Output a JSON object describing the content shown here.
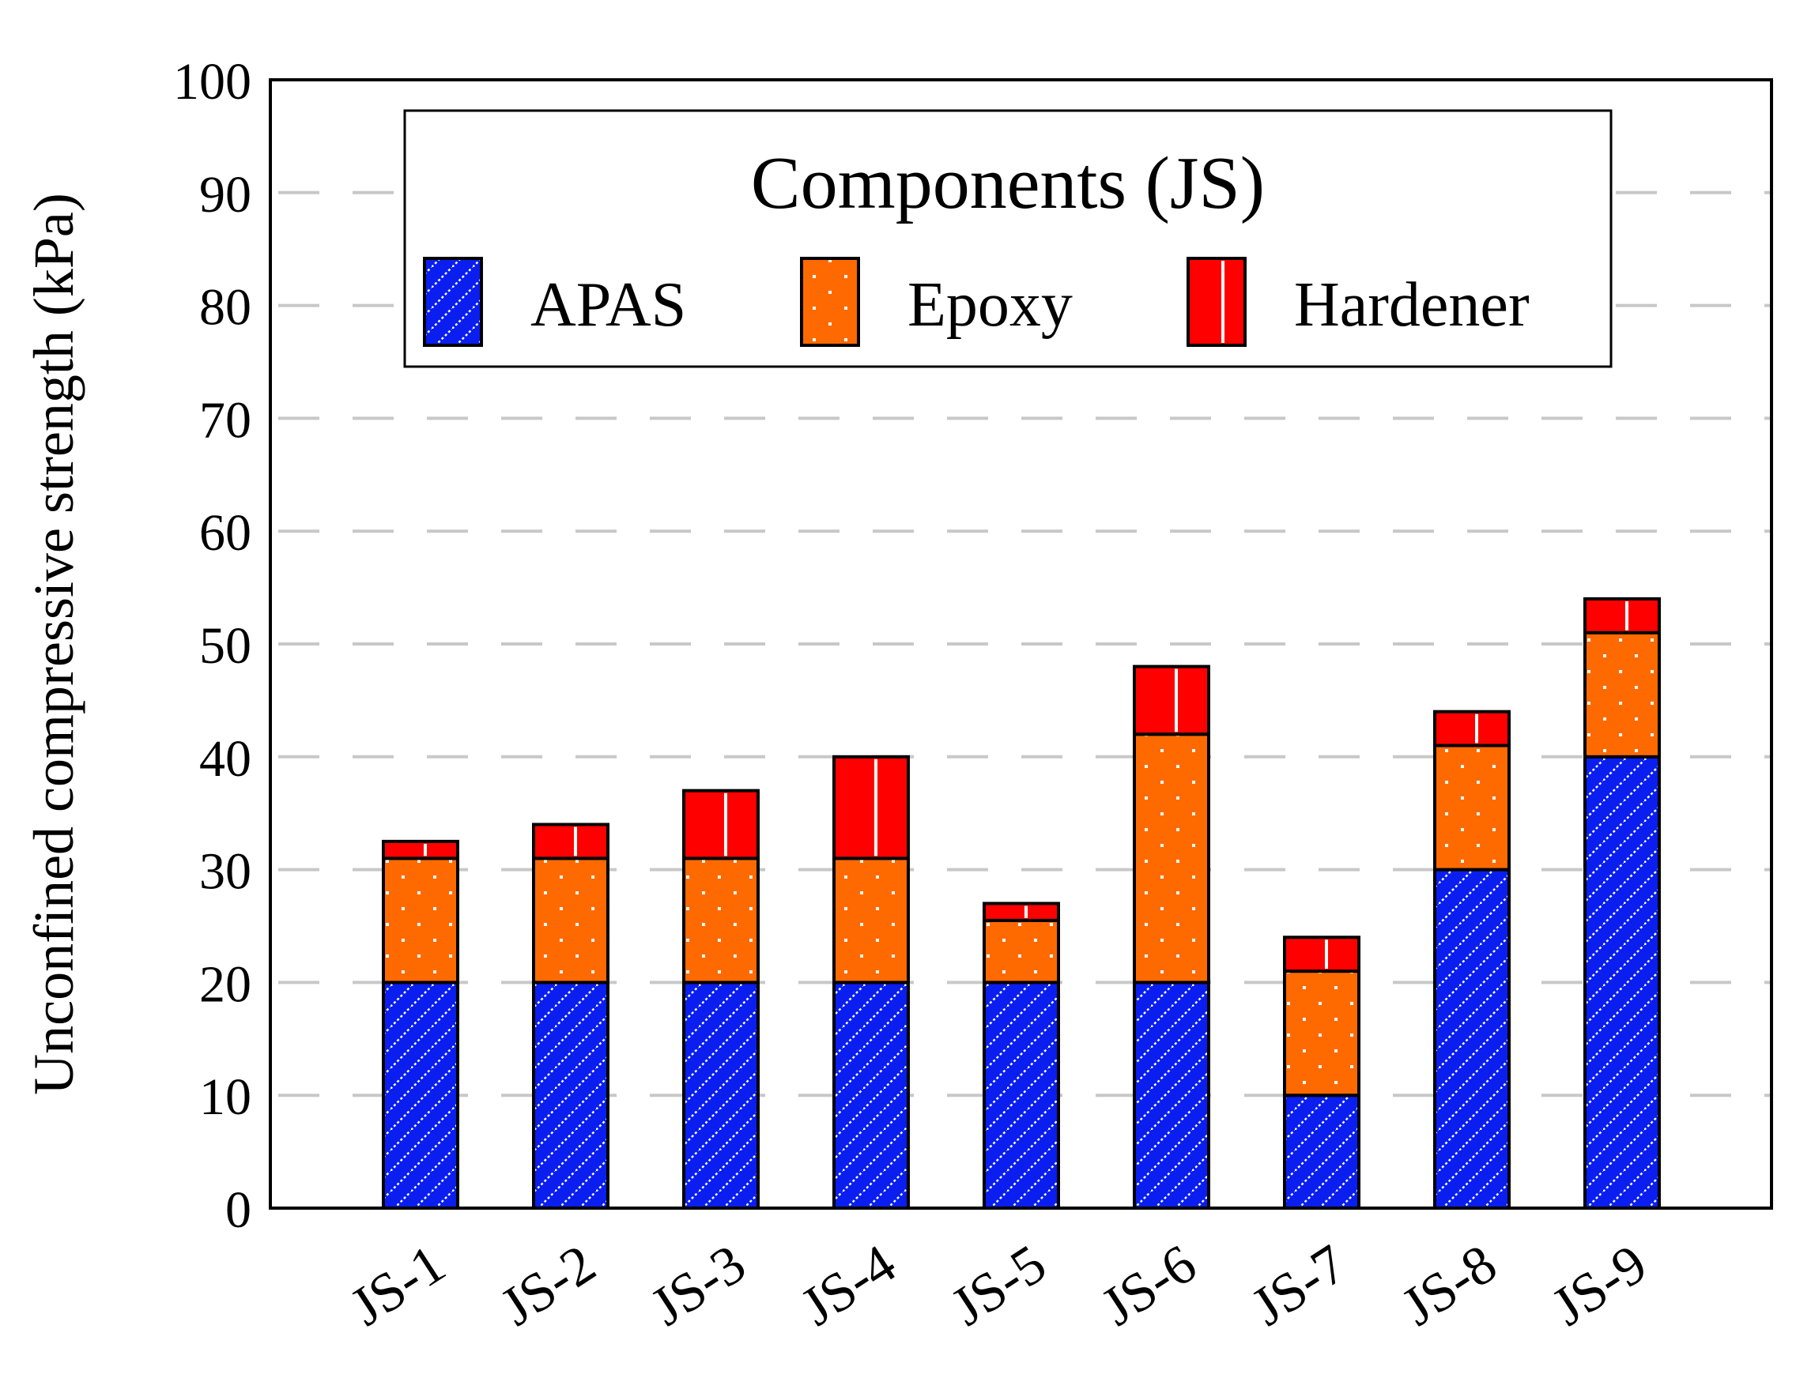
{
  "chart_data": {
    "type": "bar",
    "stacked": true,
    "title": "",
    "xlabel": "",
    "ylabel": "Unconfined compressive strength (kPa)",
    "ylim": [
      0,
      100
    ],
    "yticks": [
      0,
      10,
      20,
      30,
      40,
      50,
      60,
      70,
      80,
      90,
      100
    ],
    "grid": true,
    "categories": [
      "JS-1",
      "JS-2",
      "JS-3",
      "JS-4",
      "JS-5",
      "JS-6",
      "JS-7",
      "JS-8",
      "JS-9"
    ],
    "series": [
      {
        "name": "APAS",
        "color": "#0a1ef0",
        "pattern": "diagonal-hatch",
        "values": [
          20,
          20,
          20,
          20,
          20,
          20,
          10,
          30,
          40
        ]
      },
      {
        "name": "Epoxy",
        "color": "#ff6a00",
        "pattern": "dots",
        "values": [
          11,
          11,
          11,
          11,
          5.5,
          22,
          11,
          11,
          11
        ]
      },
      {
        "name": "Hardener",
        "color": "#ff0000",
        "pattern": "vertical-line",
        "values": [
          1.5,
          3,
          6,
          9,
          1.5,
          6,
          3,
          3,
          3
        ]
      }
    ],
    "legend": {
      "title": "Components (JS)",
      "placement": "top-center"
    }
  }
}
